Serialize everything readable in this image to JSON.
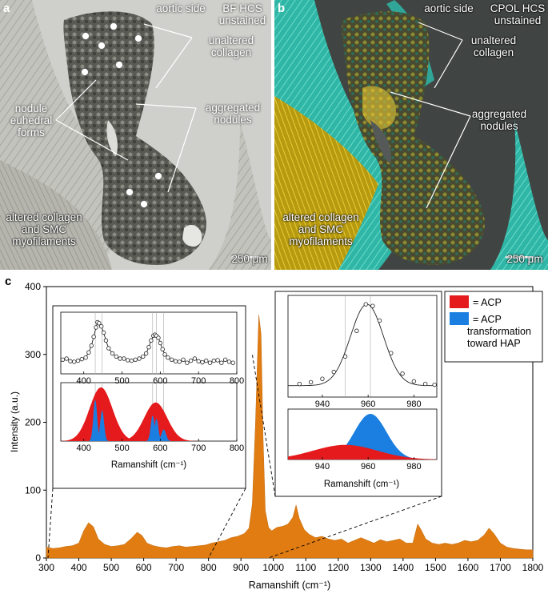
{
  "panel_a": {
    "label": "a",
    "header_left": "aortic side",
    "header_right": "BF HCS unstained",
    "annotations": {
      "unaltered": "unaltered collagen",
      "nodule": "nodule euhedral forms",
      "aggregated": "aggregated nodules",
      "altered": "altered collagen and SMC myofilaments"
    },
    "scalebar": "250 μm"
  },
  "panel_b": {
    "label": "b",
    "header_left": "aortic side",
    "header_right": "CPOL HCS unstained",
    "annotations": {
      "unaltered": "unaltered collagen",
      "aggregated": "aggregated nodules",
      "altered": "altered collagen and SMC myofilaments"
    },
    "scalebar": "250 μm"
  },
  "panel_c": {
    "label": "c",
    "legend": {
      "acp": "= ACP",
      "acp_hap": "= ACP transformation toward HAP"
    },
    "colors": {
      "spectrum": "#e07c12",
      "acp": "#e41a1c",
      "hap": "#1a7fe0"
    }
  },
  "chart_data": [
    {
      "type": "area",
      "xlabel": "Ramanshift (cm⁻¹)",
      "ylabel": "Intensity (a.u.)",
      "xlim": [
        300,
        1800
      ],
      "ylim": [
        0,
        400
      ],
      "xticks": [
        300,
        400,
        500,
        600,
        700,
        800,
        900,
        1000,
        1100,
        1200,
        1300,
        1400,
        1500,
        1600,
        1700,
        1800
      ],
      "yticks": [
        0,
        100,
        200,
        300,
        400
      ],
      "series": [
        {
          "x": [
            300,
            320,
            340,
            360,
            380,
            400,
            415,
            430,
            445,
            460,
            480,
            500,
            520,
            540,
            560,
            580,
            595,
            610,
            630,
            650,
            670,
            690,
            710,
            730,
            750,
            770,
            790,
            810,
            830,
            850,
            870,
            890,
            910,
            925,
            935,
            945,
            955,
            962,
            968,
            975,
            985,
            995,
            1010,
            1030,
            1045,
            1060,
            1070,
            1080,
            1095,
            1110,
            1130,
            1150,
            1170,
            1190,
            1210,
            1230,
            1250,
            1270,
            1290,
            1310,
            1330,
            1350,
            1370,
            1390,
            1410,
            1430,
            1445,
            1455,
            1470,
            1490,
            1510,
            1530,
            1550,
            1570,
            1590,
            1610,
            1630,
            1650,
            1665,
            1680,
            1700,
            1720,
            1740,
            1760,
            1780,
            1800
          ],
          "y": [
            16,
            14,
            15,
            17,
            18,
            22,
            40,
            52,
            46,
            28,
            20,
            17,
            18,
            20,
            28,
            38,
            33,
            22,
            18,
            16,
            15,
            17,
            18,
            16,
            17,
            18,
            19,
            22,
            24,
            26,
            30,
            32,
            36,
            44,
            80,
            200,
            358,
            330,
            180,
            70,
            45,
            40,
            45,
            47,
            50,
            60,
            78,
            58,
            42,
            35,
            30,
            32,
            28,
            26,
            28,
            22,
            26,
            30,
            26,
            22,
            27,
            24,
            26,
            28,
            22,
            22,
            50,
            42,
            28,
            22,
            20,
            22,
            20,
            22,
            26,
            24,
            26,
            34,
            44,
            36,
            22,
            16,
            14,
            13,
            12,
            12
          ]
        }
      ]
    },
    {
      "type": "scatter",
      "xlim": [
        340,
        800
      ],
      "xticks": [
        400,
        500,
        600,
        700,
        800
      ],
      "yticks": [],
      "series": [
        {
          "x": [
            345,
            355,
            365,
            375,
            385,
            395,
            405,
            413,
            420,
            426,
            432,
            436,
            440,
            446,
            452,
            458,
            465,
            475,
            485,
            495,
            505,
            515,
            525,
            535,
            545,
            555,
            563,
            570,
            576,
            582,
            586,
            590,
            595,
            600,
            606,
            612,
            620,
            630,
            640,
            650,
            660,
            670,
            680,
            690,
            700,
            710,
            720,
            730,
            740,
            750,
            760,
            770,
            780,
            790
          ],
          "y": [
            0.18,
            0.2,
            0.15,
            0.14,
            0.16,
            0.19,
            0.22,
            0.32,
            0.45,
            0.62,
            0.8,
            0.9,
            0.88,
            0.82,
            0.7,
            0.55,
            0.4,
            0.3,
            0.24,
            0.2,
            0.2,
            0.17,
            0.16,
            0.18,
            0.2,
            0.24,
            0.3,
            0.42,
            0.55,
            0.64,
            0.66,
            0.64,
            0.6,
            0.5,
            0.38,
            0.28,
            0.22,
            0.18,
            0.15,
            0.14,
            0.18,
            0.12,
            0.16,
            0.2,
            0.15,
            0.13,
            0.16,
            0.12,
            0.16,
            0.17,
            0.12,
            0.18,
            0.14,
            0.12
          ]
        }
      ]
    },
    {
      "type": "area",
      "xlabel": "Ramanshift (cm⁻¹)",
      "xlim": [
        340,
        800
      ],
      "xticks": [
        400,
        500,
        600,
        700,
        800
      ],
      "series": [
        {
          "name": "= ACP",
          "components": [
            {
              "center": 445,
              "height": 1.0,
              "width": 30
            },
            {
              "center": 588,
              "height": 0.72,
              "width": 30
            }
          ]
        },
        {
          "name": "= ACP transformation toward HAP",
          "components": [
            {
              "center": 430,
              "height": 0.78,
              "width": 5
            },
            {
              "center": 448,
              "height": 0.58,
              "width": 5
            },
            {
              "center": 580,
              "height": 0.48,
              "width": 5
            },
            {
              "center": 590,
              "height": 0.42,
              "width": 5
            },
            {
              "center": 609,
              "height": 0.22,
              "width": 6
            }
          ]
        }
      ]
    },
    {
      "type": "scatter",
      "xlim": [
        925,
        990
      ],
      "xticks": [
        940,
        960,
        980
      ],
      "series": [
        {
          "x": [
            930,
            935,
            940,
            945,
            950,
            955,
            959,
            962,
            965,
            970,
            975,
            980,
            985,
            989
          ],
          "y": [
            0.06,
            0.08,
            0.12,
            0.2,
            0.38,
            0.68,
            0.99,
            0.97,
            0.8,
            0.42,
            0.18,
            0.09,
            0.06,
            0.05
          ]
        }
      ]
    },
    {
      "type": "area",
      "xlabel": "Ramanshift (cm⁻¹)",
      "xlim": [
        925,
        990
      ],
      "xticks": [
        940,
        960,
        980
      ],
      "series": [
        {
          "name": "= ACP",
          "components": [
            {
              "center": 950,
              "height": 0.32,
              "width": 14
            }
          ]
        },
        {
          "name": "= ACP transformation toward HAP",
          "components": [
            {
              "center": 961,
              "height": 1.0,
              "width": 7
            }
          ]
        }
      ]
    }
  ]
}
